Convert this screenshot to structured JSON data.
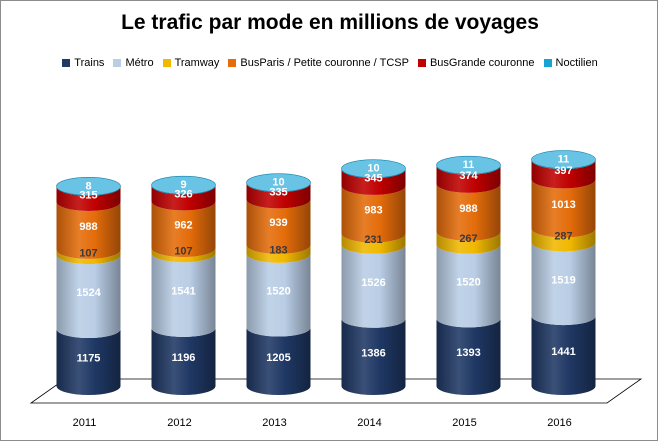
{
  "chart_data": {
    "type": "bar",
    "stacked": true,
    "style": "3d-cylinder",
    "title": "Le trafic par mode en millions de voyages",
    "categories": [
      "2011",
      "2012",
      "2013",
      "2014",
      "2015",
      "2016"
    ],
    "series": [
      {
        "name": "Trains",
        "color": "#1f3864",
        "label_color": "#ffffff",
        "values": [
          1175,
          1196,
          1205,
          1386,
          1393,
          1441
        ]
      },
      {
        "name": "Métro",
        "color": "#b9cde5",
        "label_color": "#ffffff",
        "values": [
          1524,
          1541,
          1520,
          1526,
          1520,
          1519
        ]
      },
      {
        "name": "Tramway",
        "color": "#f0b800",
        "label_color": "#3a3a3a",
        "values": [
          107,
          107,
          183,
          231,
          267,
          287
        ]
      },
      {
        "name": "BusParis / Petite couronne / TCSP",
        "color": "#e46c0a",
        "label_color": "#ffffff",
        "values": [
          988,
          962,
          939,
          983,
          988,
          1013
        ]
      },
      {
        "name": "BusGrande couronne",
        "color": "#c00000",
        "label_color": "#ffffff",
        "values": [
          315,
          326,
          335,
          345,
          374,
          397
        ]
      },
      {
        "name": "Noctilien",
        "color": "#17a3d6",
        "label_color": "#ffffff",
        "values": [
          8,
          9,
          10,
          10,
          11,
          11
        ]
      }
    ],
    "legend_position": "top",
    "grid": false
  }
}
